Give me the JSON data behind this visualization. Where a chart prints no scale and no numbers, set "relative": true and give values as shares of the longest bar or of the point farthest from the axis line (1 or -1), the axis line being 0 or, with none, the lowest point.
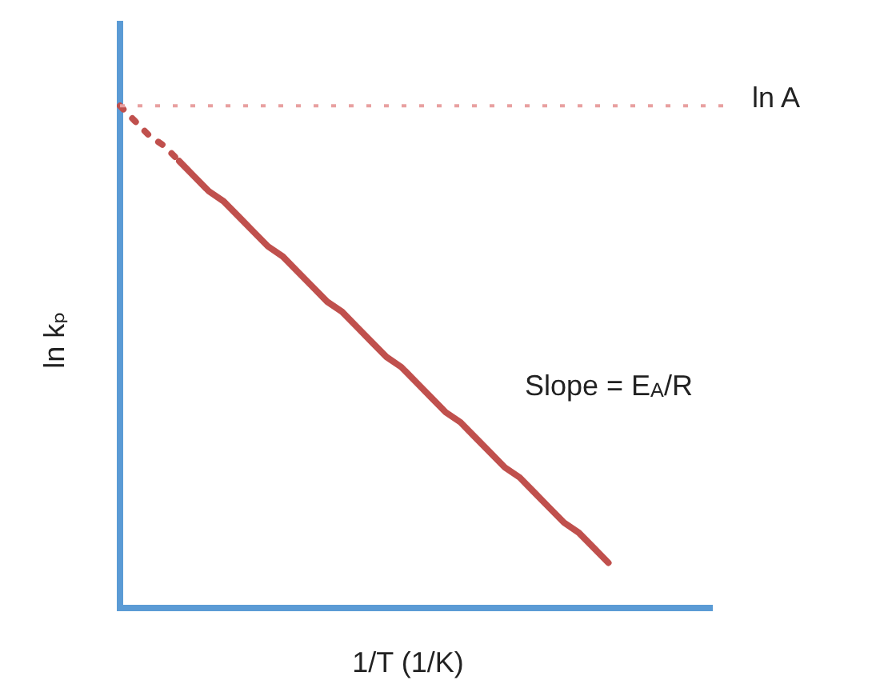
{
  "chart_data": {
    "type": "line",
    "relative": true,
    "xlabel": "1/T (1/K)",
    "ylabel": "ln kₚ",
    "grid": false,
    "legend": false,
    "marker": "none",
    "categories": [
      null,
      null,
      null,
      null,
      null,
      null,
      null,
      null,
      null,
      null,
      null,
      null,
      null,
      null,
      null,
      null,
      null,
      null,
      null,
      null,
      null,
      null,
      null,
      null,
      null,
      null,
      null,
      null,
      null,
      null,
      null,
      null,
      null,
      null,
      null,
      null,
      null,
      null,
      null,
      null,
      null
    ],
    "series": [
      {
        "color": "#c0504d",
        "line_style": "dotted",
        "values": [
          1,
          0.97,
          0.94,
          0.92,
          0.89,
          null,
          null,
          null,
          null,
          null,
          null,
          null,
          null,
          null,
          null,
          null,
          null,
          null,
          null,
          null,
          null,
          null,
          null,
          null,
          null,
          null,
          null,
          null,
          null,
          null,
          null,
          null,
          null,
          null,
          null,
          null,
          null,
          null,
          null,
          null,
          null
        ]
      },
      {
        "color": "#c0504d",
        "line_style": "solid",
        "values": [
          null,
          null,
          null,
          null,
          0.89,
          0.86,
          0.83,
          0.81,
          0.78,
          0.75,
          0.72,
          0.7,
          0.67,
          0.64,
          0.61,
          0.59,
          0.56,
          0.53,
          0.5,
          0.48,
          0.45,
          0.42,
          0.39,
          0.37,
          0.34,
          0.31,
          0.28,
          0.26,
          0.23,
          0.2,
          0.17,
          0.15,
          0.12,
          0.09,
          null,
          null,
          null,
          null,
          null,
          null,
          null
        ]
      }
    ],
    "ref_lines": [
      {
        "axis": "y",
        "value": 1,
        "label": "ln A",
        "color": "#e8a0a0",
        "line_style": "dotted"
      }
    ],
    "annotations": [
      "Slope = E$_{A}$/R"
    ]
  }
}
